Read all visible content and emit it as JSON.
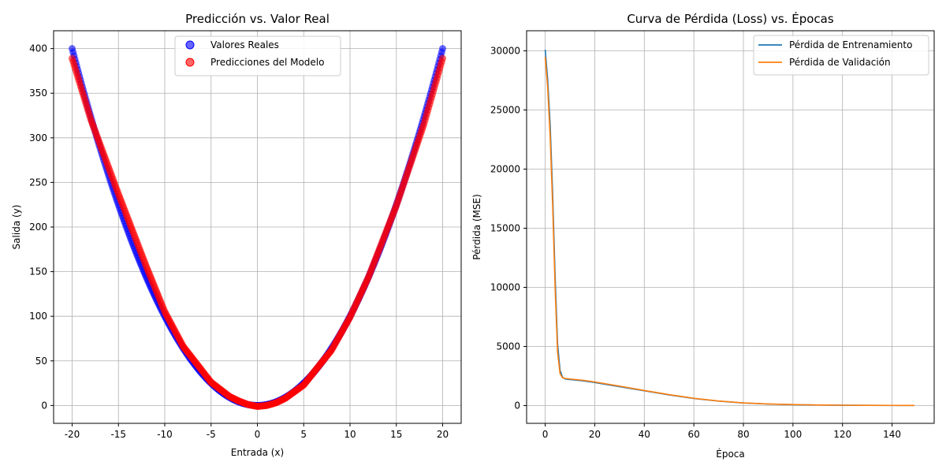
{
  "chart_data": [
    {
      "type": "scatter",
      "title": "Predicción vs. Valor Real",
      "xlabel": "Entrada (x)",
      "ylabel": "Salida (y)",
      "xlim": [
        -22,
        22
      ],
      "ylim": [
        -20,
        420
      ],
      "xticks": [
        -20,
        -15,
        -10,
        -5,
        0,
        5,
        10,
        15,
        20
      ],
      "yticks": [
        0,
        50,
        100,
        150,
        200,
        250,
        300,
        350,
        400
      ],
      "grid": true,
      "legend_position": "top-center",
      "series": [
        {
          "name": "Valores Reales",
          "color": "#0000ff",
          "function": "y = x^2",
          "x_range": [
            -20,
            20
          ],
          "n_points": 400
        },
        {
          "name": "Predicciones del Modelo",
          "color": "#ff0000",
          "x_range": [
            -20,
            20
          ],
          "n_points": 400,
          "points": [
            [
              -20,
              389
            ],
            [
              -18,
              321
            ],
            [
              -15,
              237
            ],
            [
              -12,
              156
            ],
            [
              -10,
              105
            ],
            [
              -8,
              66
            ],
            [
              -5,
              26
            ],
            [
              -3,
              10
            ],
            [
              -2,
              5
            ],
            [
              -1,
              1
            ],
            [
              0,
              -1
            ],
            [
              1,
              0
            ],
            [
              2,
              3
            ],
            [
              3,
              8
            ],
            [
              5,
              23
            ],
            [
              8,
              62
            ],
            [
              10,
              99
            ],
            [
              12,
              144
            ],
            [
              15,
              224
            ],
            [
              18,
              316
            ],
            [
              20,
              389
            ]
          ]
        }
      ]
    },
    {
      "type": "line",
      "title": "Curva de Pérdida (Loss) vs. Épocas",
      "xlabel": "Época",
      "ylabel": "Pérdida (MSE)",
      "xlim": [
        -7.5,
        157
      ],
      "ylim": [
        -1500,
        31700
      ],
      "xticks": [
        0,
        20,
        40,
        60,
        80,
        100,
        120,
        140
      ],
      "yticks": [
        0,
        5000,
        10000,
        15000,
        20000,
        25000,
        30000
      ],
      "grid": true,
      "legend_position": "top-right",
      "series": [
        {
          "name": "Pérdida de Entrenamiento",
          "color": "#1f77b4",
          "points": [
            [
              0,
              30100
            ],
            [
              1,
              27600
            ],
            [
              2,
              23800
            ],
            [
              3,
              18000
            ],
            [
              4,
              11000
            ],
            [
              5,
              5200
            ],
            [
              6,
              3000
            ],
            [
              7,
              2400
            ],
            [
              8,
              2250
            ],
            [
              10,
              2200
            ],
            [
              15,
              2100
            ],
            [
              20,
              1950
            ],
            [
              30,
              1600
            ],
            [
              40,
              1250
            ],
            [
              50,
              900
            ],
            [
              60,
              600
            ],
            [
              70,
              380
            ],
            [
              80,
              220
            ],
            [
              90,
              130
            ],
            [
              100,
              80
            ],
            [
              110,
              50
            ],
            [
              120,
              30
            ],
            [
              130,
              20
            ],
            [
              140,
              15
            ],
            [
              149,
              10
            ]
          ]
        },
        {
          "name": "Pérdida de Validación",
          "color": "#ff7f0e",
          "points": [
            [
              0,
              29500
            ],
            [
              1,
              26900
            ],
            [
              2,
              22800
            ],
            [
              3,
              17000
            ],
            [
              4,
              10000
            ],
            [
              5,
              4500
            ],
            [
              6,
              2700
            ],
            [
              7,
              2350
            ],
            [
              8,
              2300
            ],
            [
              10,
              2250
            ],
            [
              15,
              2150
            ],
            [
              20,
              2000
            ],
            [
              30,
              1650
            ],
            [
              40,
              1280
            ],
            [
              50,
              930
            ],
            [
              60,
              620
            ],
            [
              70,
              390
            ],
            [
              80,
              230
            ],
            [
              90,
              140
            ],
            [
              100,
              85
            ],
            [
              110,
              55
            ],
            [
              120,
              33
            ],
            [
              130,
              22
            ],
            [
              140,
              16
            ],
            [
              149,
              12
            ]
          ]
        }
      ]
    }
  ]
}
